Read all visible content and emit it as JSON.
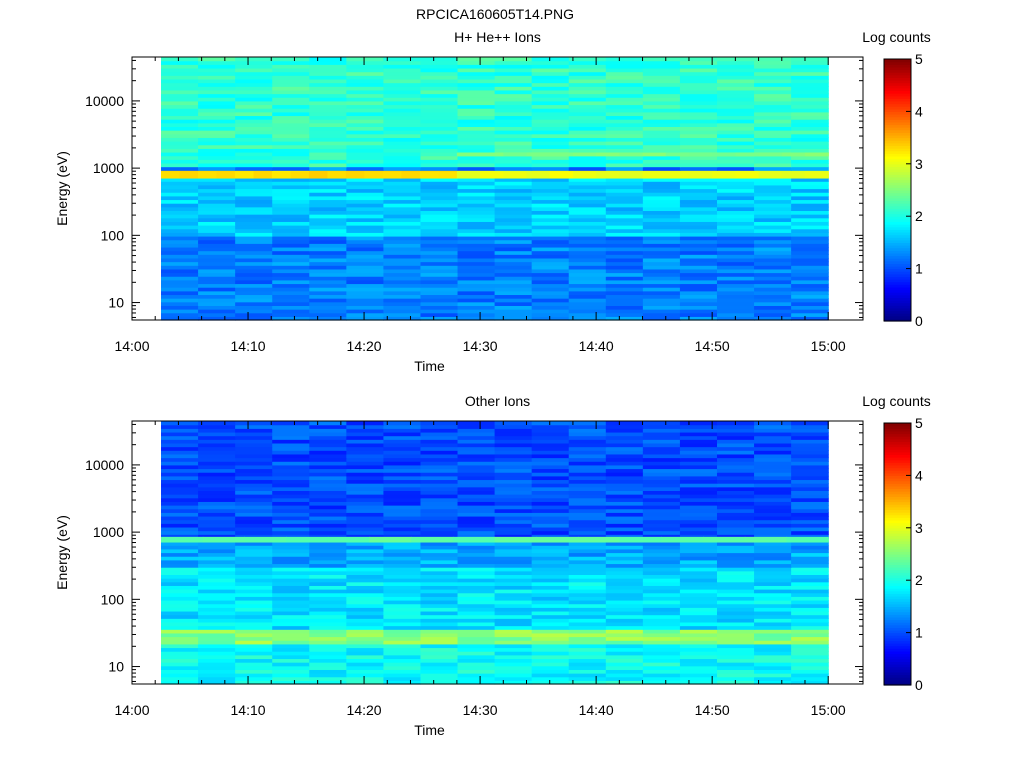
{
  "page_title": "RPCICA160605T14.PNG",
  "chart_data": [
    {
      "type": "heatmap",
      "title": "H+ He++ Ions",
      "xlabel": "Time",
      "ylabel": "Energy (eV)",
      "x_ticks": [
        "14:00",
        "14:10",
        "14:20",
        "14:30",
        "14:40",
        "14:50",
        "15:00"
      ],
      "x_range": [
        "14:00",
        "15:03"
      ],
      "data_time_range": [
        "14:02.5",
        "15:00"
      ],
      "y_ticks": [
        "10",
        "100",
        "1000",
        "10000"
      ],
      "y_scale": "log",
      "y_range": [
        5.5,
        45000
      ],
      "colorbar": {
        "label": "Log counts",
        "range": [
          0,
          5
        ],
        "ticks": [
          "0",
          "1",
          "2",
          "3",
          "4",
          "5"
        ]
      },
      "features": [
        {
          "energy_range": [
            700,
            900
          ],
          "time_range": [
            "14:02.5",
            "14:28"
          ],
          "log_counts": 3.3
        },
        {
          "energy_range": [
            700,
            900
          ],
          "time_range": [
            "14:28",
            "15:00"
          ],
          "log_counts": 3.05
        },
        {
          "energy_range": [
            1500,
            1700
          ],
          "time_range": [
            "14:28",
            "15:00"
          ],
          "log_counts": 2.5
        },
        {
          "energy_range": [
            1000,
            45000
          ],
          "time_range": [
            "14:02.5",
            "15:00"
          ],
          "log_counts": 2.1
        },
        {
          "energy_range": [
            100,
            700
          ],
          "time_range": [
            "14:02.5",
            "15:00"
          ],
          "log_counts": 1.65
        },
        {
          "energy_range": [
            5.5,
            100
          ],
          "time_range": [
            "14:02.5",
            "15:00"
          ],
          "log_counts": 1.25
        }
      ]
    },
    {
      "type": "heatmap",
      "title": "Other Ions",
      "xlabel": "Time",
      "ylabel": "Energy (eV)",
      "x_ticks": [
        "14:00",
        "14:10",
        "14:20",
        "14:30",
        "14:40",
        "14:50",
        "15:00"
      ],
      "x_range": [
        "14:00",
        "15:03"
      ],
      "data_time_range": [
        "14:02.5",
        "15:00"
      ],
      "y_ticks": [
        "10",
        "100",
        "1000",
        "10000"
      ],
      "y_scale": "log",
      "y_range": [
        5.5,
        45000
      ],
      "colorbar": {
        "label": "Log counts",
        "range": [
          0,
          5
        ],
        "ticks": [
          "0",
          "1",
          "2",
          "3",
          "4",
          "5"
        ]
      },
      "features": [
        {
          "energy_range": [
            700,
            850
          ],
          "time_range": [
            "14:02.5",
            "15:00"
          ],
          "log_counts": 2.35
        },
        {
          "energy_range": [
            22,
            35
          ],
          "time_range": [
            "14:02.5",
            "15:00"
          ],
          "log_counts": 2.55
        },
        {
          "energy_range": [
            5.5,
            22
          ],
          "time_range": [
            "14:02.5",
            "15:00"
          ],
          "log_counts": 1.9
        },
        {
          "energy_range": [
            35,
            300
          ],
          "time_range": [
            "14:02.5",
            "15:00"
          ],
          "log_counts": 1.75
        },
        {
          "energy_range": [
            300,
            700
          ],
          "time_range": [
            "14:02.5",
            "15:00"
          ],
          "log_counts": 1.45
        },
        {
          "energy_range": [
            850,
            45000
          ],
          "time_range": [
            "14:02.5",
            "15:00"
          ],
          "log_counts": 1.0
        }
      ]
    }
  ]
}
